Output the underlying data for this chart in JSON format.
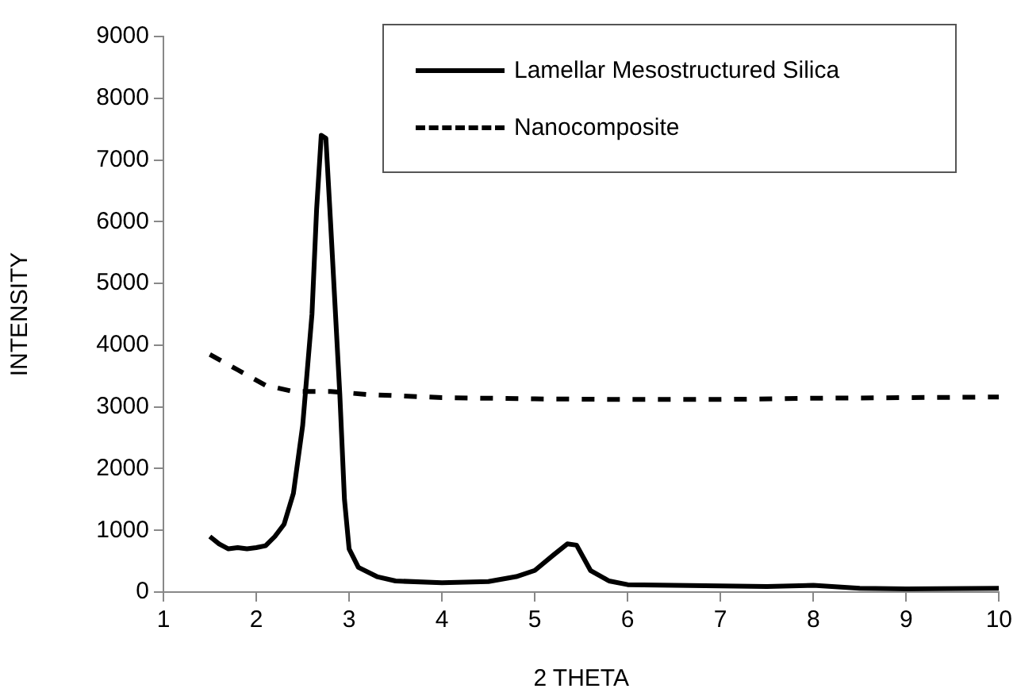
{
  "chart_data": {
    "type": "line",
    "xlabel": "2 THETA",
    "ylabel": "INTENSITY",
    "xlim": [
      1,
      10
    ],
    "xticks": [
      1,
      2,
      3,
      4,
      5,
      6,
      7,
      8,
      9,
      10
    ],
    "ylim": [
      0,
      9000
    ],
    "yticks": [
      0,
      1000,
      2000,
      3000,
      4000,
      5000,
      6000,
      7000,
      8000,
      9000
    ],
    "grid": false,
    "legend": "top right",
    "marker": "none",
    "series": [
      {
        "name": "Lamellar Mesostructured Silica",
        "color": "#000000",
        "line_style": "solid",
        "x": [
          1.5,
          1.6,
          1.7,
          1.8,
          1.9,
          2.0,
          2.1,
          2.2,
          2.3,
          2.4,
          2.5,
          2.6,
          2.65,
          2.7,
          2.75,
          2.8,
          2.9,
          2.95,
          3.0,
          3.1,
          3.3,
          3.5,
          4.0,
          4.5,
          4.8,
          5.0,
          5.2,
          5.35,
          5.45,
          5.6,
          5.8,
          6.0,
          7.0,
          7.5,
          8.0,
          8.5,
          9.0,
          10.0
        ],
        "values": [
          900,
          780,
          700,
          720,
          700,
          720,
          750,
          900,
          1100,
          1600,
          2700,
          4500,
          6200,
          7400,
          7350,
          6000,
          3200,
          1500,
          700,
          400,
          250,
          180,
          150,
          170,
          250,
          350,
          600,
          780,
          760,
          350,
          180,
          120,
          100,
          90,
          110,
          60,
          50,
          60
        ]
      },
      {
        "name": "Nanocomposite",
        "color": "#000000",
        "line_style": "dashed",
        "x": [
          1.5,
          1.8,
          2.1,
          2.4,
          2.8,
          3.2,
          4.0,
          5.0,
          6.0,
          7.0,
          8.0,
          9.0,
          10.0
        ],
        "values": [
          3850,
          3600,
          3350,
          3250,
          3250,
          3200,
          3150,
          3130,
          3120,
          3120,
          3140,
          3150,
          3160
        ]
      }
    ]
  }
}
